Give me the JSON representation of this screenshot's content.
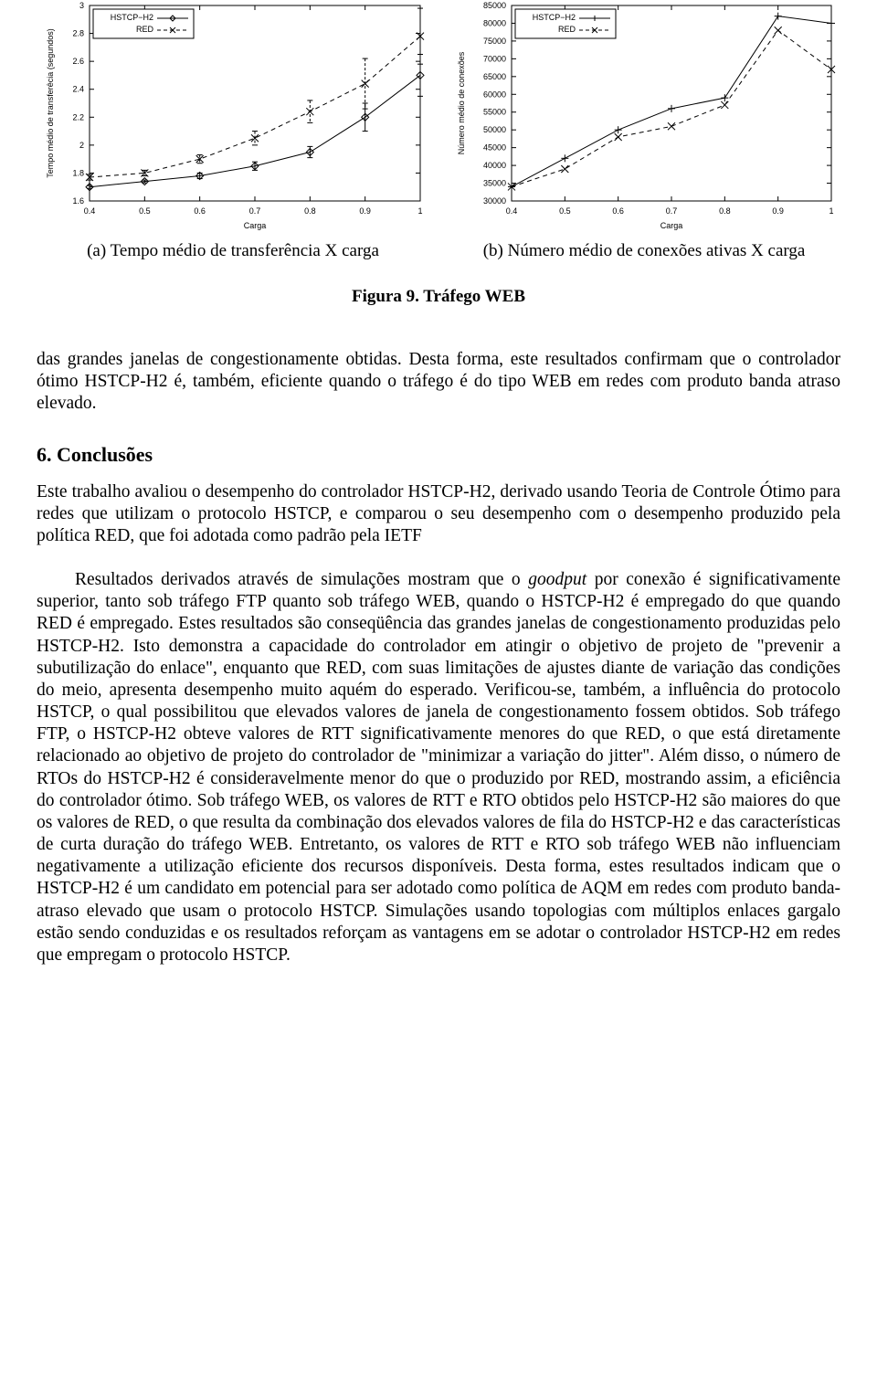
{
  "chart_a": {
    "type": "line",
    "title": "",
    "xlabel": "Carga",
    "ylabel": "Tempo médio de transferêcia (segundos)",
    "xlim": [
      0.4,
      1.0
    ],
    "ylim": [
      1.6,
      3.0
    ],
    "xticks": [
      0.4,
      0.5,
      0.6,
      0.7,
      0.8,
      0.9,
      1.0
    ],
    "yticks": [
      1.6,
      1.8,
      2.0,
      2.2,
      2.4,
      2.6,
      2.8,
      3.0
    ],
    "label_fontsize": 9,
    "tick_fontsize": 9,
    "legend_fontsize": 9,
    "background_color": "#ffffff",
    "axis_color": "#000000",
    "grid_on": false,
    "series": [
      {
        "name": "HSTCP−H2",
        "color": "#000000",
        "marker": "diamond",
        "dash": "solid",
        "x": [
          0.4,
          0.5,
          0.6,
          0.7,
          0.8,
          0.9,
          1.0
        ],
        "y": [
          1.7,
          1.74,
          1.78,
          1.85,
          1.95,
          2.2,
          2.5
        ],
        "yerr": [
          0.01,
          0.01,
          0.02,
          0.03,
          0.04,
          0.1,
          0.15
        ]
      },
      {
        "name": "RED",
        "color": "#000000",
        "marker": "x",
        "dash": "dash",
        "x": [
          0.4,
          0.5,
          0.6,
          0.7,
          0.8,
          0.9,
          1.0
        ],
        "y": [
          1.77,
          1.8,
          1.9,
          2.05,
          2.24,
          2.44,
          2.78
        ],
        "yerr": [
          0.02,
          0.02,
          0.03,
          0.05,
          0.08,
          0.18,
          0.2
        ]
      }
    ],
    "legend_pos": "upper-left",
    "line_width": 1,
    "marker_size": 4
  },
  "chart_b": {
    "type": "line",
    "title": "",
    "xlabel": "Carga",
    "ylabel": "Número médio de conexões",
    "xlim": [
      0.4,
      1.0
    ],
    "ylim": [
      30000,
      85000
    ],
    "xticks": [
      0.4,
      0.5,
      0.6,
      0.7,
      0.8,
      0.9,
      1.0
    ],
    "yticks": [
      30000,
      35000,
      40000,
      45000,
      50000,
      55000,
      60000,
      65000,
      70000,
      75000,
      80000,
      85000
    ],
    "label_fontsize": 9,
    "tick_fontsize": 9,
    "legend_fontsize": 9,
    "background_color": "#ffffff",
    "axis_color": "#000000",
    "grid_on": false,
    "series": [
      {
        "name": "HSTCP−H2",
        "color": "#000000",
        "marker": "plus",
        "dash": "solid",
        "x": [
          0.4,
          0.5,
          0.6,
          0.7,
          0.8,
          0.9,
          1.0
        ],
        "y": [
          34000,
          42000,
          50000,
          56000,
          59000,
          82000,
          80000
        ]
      },
      {
        "name": "RED",
        "color": "#000000",
        "marker": "x",
        "dash": "dash",
        "x": [
          0.4,
          0.5,
          0.6,
          0.7,
          0.8,
          0.9,
          1.0
        ],
        "y": [
          34000,
          39000,
          48000,
          51000,
          57000,
          78000,
          67000
        ]
      }
    ],
    "legend_pos": "upper-left",
    "line_width": 1,
    "marker_size": 4
  },
  "captions": {
    "subfig_a": "(a) Tempo médio de transferência X carga",
    "subfig_b": "(b) Número médio de conexões ativas X carga",
    "figure_label": "Figura 9. Tráfego WEB"
  },
  "text": {
    "para_top": "das grandes janelas de congestionamente obtidas. Desta forma, este resultados confirmam que o controlador ótimo HSTCP-H2 é, também, eficiente quando o tráfego é do tipo WEB em redes com produto banda atraso elevado.",
    "section_heading": "6. Conclusões",
    "para_1": "Este trabalho avaliou o desempenho do controlador HSTCP-H2, derivado usando Teoria de Controle Ótimo para redes que utilizam o protocolo HSTCP, e comparou o seu desempenho com o desempenho produzido pela política RED, que foi adotada como padrão pela IETF",
    "para_2": "Resultados derivados através de simulações mostram que o goodput por conexão é significativamente superior, tanto sob tráfego FTP quanto sob tráfego WEB, quando o HSTCP-H2 é empregado do que quando RED é empregado. Estes resultados são conseqüência das grandes janelas de congestionamento produzidas pelo HSTCP-H2. Isto demonstra a capacidade do controlador em atingir o objetivo de projeto de \"prevenir a subutilização do enlace\", enquanto que RED, com suas limitações de ajustes diante de variação das condições do meio, apresenta desempenho muito aquém do esperado. Verificou-se, também, a influência do protocolo HSTCP, o qual possibilitou que elevados valores de janela de congestionamento fossem obtidos. Sob tráfego FTP, o HSTCP-H2 obteve valores de RTT significativamente menores do que RED, o que está diretamente relacionado ao objetivo de projeto do controlador de \"minimizar a variação do jitter\". Além disso, o número de RTOs do HSTCP-H2 é consideravelmente menor do que o produzido por RED, mostrando assim, a eficiência do controlador ótimo. Sob tráfego WEB, os valores de RTT e RTO obtidos pelo HSTCP-H2 são maiores do que os valores de RED, o que resulta da combinação dos elevados valores de fila do HSTCP-H2 e das características de curta duração do tráfego WEB. Entretanto, os valores de RTT e RTO sob tráfego WEB não influenciam negativamente a utilização eficiente dos recursos disponíveis. Desta forma, estes resultados indicam que o HSTCP-H2 é um candidato em potencial para ser adotado como política de AQM em redes com produto banda-atraso elevado que usam o protocolo HSTCP. Simulações usando topologias com múltiplos enlaces gargalo estão sendo conduzidas e os resultados reforçam as vantagens em se adotar o controlador HSTCP-H2 em redes que empregam o protocolo HSTCP."
  }
}
